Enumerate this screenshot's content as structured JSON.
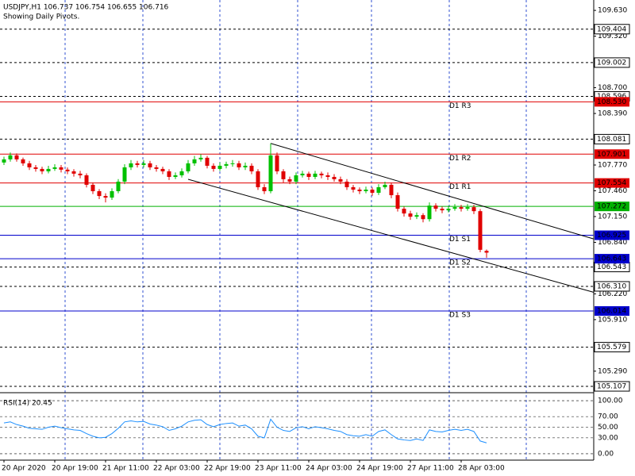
{
  "chart_data": {
    "type": "candlestick",
    "title": "USDJPY,H1  106.737 106.754 106.655 106.716",
    "subtitle": "Showing Daily Pivots.",
    "categories": [
      "20 Apr 2020",
      null,
      null,
      null,
      null,
      null,
      null,
      null,
      "20 Apr 19:00",
      null,
      null,
      null,
      null,
      null,
      null,
      null,
      "21 Apr 11:00",
      null,
      null,
      null,
      null,
      null,
      null,
      null,
      "22 Apr 03:00",
      null,
      null,
      null,
      null,
      null,
      null,
      null,
      "22 Apr 19:00",
      null,
      null,
      null,
      null,
      null,
      null,
      null,
      "23 Apr 11:00",
      null,
      null,
      null,
      null,
      null,
      null,
      null,
      "24 Apr 03:00",
      null,
      null,
      null,
      null,
      null,
      null,
      null,
      "24 Apr 19:00",
      null,
      null,
      null,
      null,
      null,
      null,
      null,
      "27 Apr 11:00",
      null,
      null,
      null,
      null,
      null,
      null,
      null,
      "28 Apr 03:00",
      null,
      null,
      null,
      null
    ],
    "candles": [
      [
        107.8,
        107.87,
        107.77,
        107.838
      ],
      [
        107.838,
        107.92,
        107.81,
        107.886
      ],
      [
        107.886,
        107.91,
        107.81,
        107.838
      ],
      [
        107.838,
        107.86,
        107.76,
        107.79
      ],
      [
        107.79,
        107.82,
        107.71,
        107.742
      ],
      [
        107.742,
        107.77,
        107.69,
        107.723
      ],
      [
        107.723,
        107.75,
        107.66,
        107.694
      ],
      [
        107.694,
        107.76,
        107.67,
        107.723
      ],
      [
        107.723,
        107.78,
        107.7,
        107.742
      ],
      [
        107.742,
        107.77,
        107.68,
        107.714
      ],
      [
        107.714,
        107.74,
        107.66,
        107.694
      ],
      [
        107.694,
        107.72,
        107.63,
        107.666
      ],
      [
        107.666,
        107.7,
        107.61,
        107.646
      ],
      [
        107.646,
        107.67,
        107.5,
        107.532
      ],
      [
        107.532,
        107.56,
        107.42,
        107.455
      ],
      [
        107.455,
        107.48,
        107.36,
        107.397
      ],
      [
        107.397,
        107.43,
        107.32,
        107.378
      ],
      [
        107.378,
        107.49,
        107.35,
        107.455
      ],
      [
        107.455,
        107.6,
        107.43,
        107.57
      ],
      [
        107.57,
        107.78,
        107.54,
        107.742
      ],
      [
        107.742,
        107.83,
        107.71,
        107.79
      ],
      [
        107.79,
        107.82,
        107.74,
        107.771
      ],
      [
        107.771,
        107.83,
        107.74,
        107.79
      ],
      [
        107.79,
        107.82,
        107.71,
        107.742
      ],
      [
        107.742,
        107.77,
        107.69,
        107.723
      ],
      [
        107.723,
        107.75,
        107.66,
        107.694
      ],
      [
        107.694,
        107.72,
        107.59,
        107.627
      ],
      [
        107.627,
        107.68,
        107.6,
        107.646
      ],
      [
        107.646,
        107.73,
        107.62,
        107.694
      ],
      [
        107.694,
        107.83,
        107.67,
        107.79
      ],
      [
        107.79,
        107.88,
        107.76,
        107.838
      ],
      [
        107.838,
        107.9,
        107.81,
        107.857
      ],
      [
        107.857,
        107.88,
        107.73,
        107.761
      ],
      [
        107.761,
        107.79,
        107.69,
        107.723
      ],
      [
        107.723,
        107.8,
        107.7,
        107.761
      ],
      [
        107.761,
        107.81,
        107.73,
        107.781
      ],
      [
        107.781,
        107.83,
        107.75,
        107.79
      ],
      [
        107.79,
        107.82,
        107.71,
        107.742
      ],
      [
        107.742,
        107.8,
        107.71,
        107.761
      ],
      [
        107.761,
        107.79,
        107.66,
        107.694
      ],
      [
        107.694,
        107.72,
        107.47,
        107.503
      ],
      [
        107.503,
        107.54,
        107.42,
        107.455
      ],
      [
        107.455,
        108.03,
        107.43,
        107.886
      ],
      [
        107.886,
        107.92,
        107.66,
        107.694
      ],
      [
        107.694,
        107.72,
        107.56,
        107.599
      ],
      [
        107.599,
        107.63,
        107.54,
        107.57
      ],
      [
        107.57,
        107.68,
        107.54,
        107.646
      ],
      [
        107.646,
        107.7,
        107.62,
        107.666
      ],
      [
        107.666,
        107.69,
        107.59,
        107.627
      ],
      [
        107.627,
        107.7,
        107.6,
        107.666
      ],
      [
        107.666,
        107.69,
        107.61,
        107.646
      ],
      [
        107.646,
        107.68,
        107.59,
        107.627
      ],
      [
        107.627,
        107.66,
        107.57,
        107.599
      ],
      [
        107.599,
        107.63,
        107.54,
        107.57
      ],
      [
        107.57,
        107.6,
        107.47,
        107.503
      ],
      [
        107.503,
        107.53,
        107.44,
        107.474
      ],
      [
        107.474,
        107.5,
        107.42,
        107.455
      ],
      [
        107.455,
        107.51,
        107.43,
        107.474
      ],
      [
        107.474,
        107.5,
        107.4,
        107.436
      ],
      [
        107.436,
        107.54,
        107.41,
        107.503
      ],
      [
        107.503,
        107.57,
        107.48,
        107.532
      ],
      [
        107.532,
        107.56,
        107.37,
        107.407
      ],
      [
        107.407,
        107.44,
        107.21,
        107.244
      ],
      [
        107.244,
        107.27,
        107.15,
        107.187
      ],
      [
        107.187,
        107.22,
        107.11,
        107.148
      ],
      [
        107.148,
        107.2,
        107.12,
        107.167
      ],
      [
        107.167,
        107.19,
        107.08,
        107.119
      ],
      [
        107.119,
        107.32,
        107.09,
        107.282
      ],
      [
        107.282,
        107.31,
        107.21,
        107.244
      ],
      [
        107.244,
        107.27,
        107.19,
        107.225
      ],
      [
        107.225,
        107.28,
        107.2,
        107.244
      ],
      [
        107.244,
        107.3,
        107.22,
        107.263
      ],
      [
        107.263,
        107.29,
        107.21,
        107.244
      ],
      [
        107.244,
        107.3,
        107.22,
        107.263
      ],
      [
        107.263,
        107.29,
        107.18,
        107.215
      ],
      [
        107.215,
        107.24,
        106.72,
        106.75
      ],
      [
        106.737,
        106.754,
        106.655,
        106.716
      ]
    ],
    "up_color": "#00c000",
    "down_color": "#e00000",
    "ylim": [
      105.031,
      109.755
    ],
    "yticks": [
      {
        "value": 109.63,
        "label": "109.630"
      },
      {
        "value": 109.32,
        "label": "109.320"
      },
      {
        "value": 108.7,
        "label": "108.700"
      },
      {
        "value": 108.39,
        "label": "108.390"
      },
      {
        "value": 107.77,
        "label": "107.770"
      },
      {
        "value": 107.46,
        "label": "107.460"
      },
      {
        "value": 107.15,
        "label": "107.150"
      },
      {
        "value": 106.84,
        "label": "106.840"
      },
      {
        "value": 106.22,
        "label": "106.220"
      },
      {
        "value": 105.91,
        "label": "105.910"
      },
      {
        "value": 105.29,
        "label": "105.290"
      }
    ],
    "levels": [
      {
        "name": "D1 R3",
        "value": 108.53,
        "label": "108.530",
        "color": "#e00000"
      },
      {
        "name": "D1 R2",
        "value": 107.901,
        "label": "107.901",
        "color": "#e00000"
      },
      {
        "name": "D1 R1",
        "value": 107.554,
        "label": "107.554",
        "color": "#e00000"
      },
      {
        "value": 107.272,
        "label": "107.272",
        "color": "#00b000"
      },
      {
        "name": "D1 S1",
        "value": 106.925,
        "label": "106.925",
        "color": "#0000cc"
      },
      {
        "name": "D1 S2",
        "value": 106.643,
        "label": "106.643",
        "color": "#0000cc"
      },
      {
        "name": "D1 S3",
        "value": 106.014,
        "label": "106.014",
        "color": "#0000cc"
      }
    ],
    "hlines": [
      {
        "value": 109.404,
        "label": "109.404"
      },
      {
        "value": 109.002,
        "label": "109.002"
      },
      {
        "value": 108.596,
        "label": "108.596"
      },
      {
        "value": 108.081,
        "label": "108.081"
      },
      {
        "value": 106.543,
        "label": "106.543"
      },
      {
        "value": 106.31,
        "label": "106.310"
      },
      {
        "value": 105.579,
        "label": "105.579"
      },
      {
        "value": 105.107,
        "label": "105.107"
      }
    ],
    "trendlines": [
      {
        "x": [
          42,
          92.9
        ],
        "y": [
          108.03,
          106.88
        ]
      },
      {
        "x": [
          29,
          92.9
        ],
        "y": [
          107.598,
          106.238
        ]
      }
    ],
    "rsi": {
      "title": "RSI(14) 20.45",
      "color": "#1e90ff",
      "ylim": [
        -12,
        112
      ],
      "yticks": [
        {
          "value": 100,
          "label": "100.00"
        },
        {
          "value": 70,
          "label": "70.00"
        },
        {
          "value": 50,
          "label": "50.00"
        },
        {
          "value": 30,
          "label": "30.00"
        },
        {
          "value": 0,
          "label": "0.00"
        }
      ],
      "values": [
        58,
        60,
        55,
        52,
        48,
        47,
        46,
        50,
        52,
        49,
        47,
        45,
        44,
        38,
        33,
        30,
        31,
        38,
        48,
        60,
        62,
        60,
        61,
        56,
        54,
        51,
        44,
        47,
        52,
        60,
        63,
        64,
        55,
        51,
        55,
        57,
        58,
        52,
        54,
        47,
        33,
        30,
        65,
        50,
        44,
        42,
        49,
        51,
        47,
        51,
        49,
        47,
        44,
        42,
        36,
        34,
        33,
        36,
        33,
        42,
        45,
        36,
        28,
        26,
        25,
        28,
        25,
        45,
        42,
        41,
        44,
        46,
        44,
        46,
        42,
        24,
        20.45
      ]
    }
  }
}
